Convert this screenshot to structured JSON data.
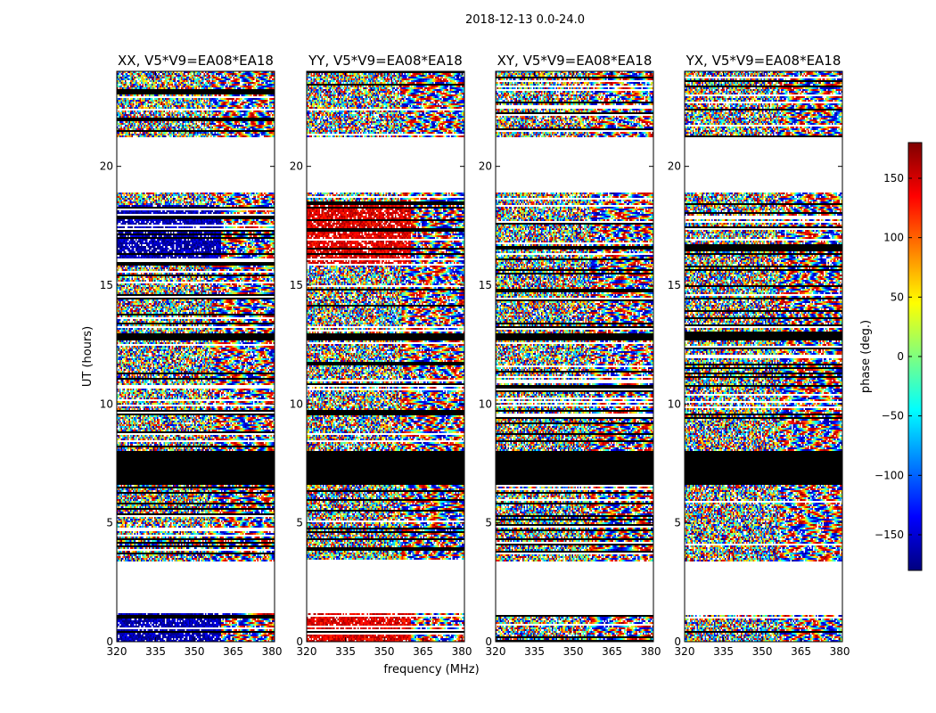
{
  "figure": {
    "suptitle": "2018-12-13 0.0-24.0"
  },
  "chart_data": [
    {
      "type": "heatmap",
      "title": "XX, V5*V9=EA08*EA18",
      "xlabel": "",
      "ylabel": "UT (hours)",
      "xlim": [
        320,
        381
      ],
      "ylim": [
        0,
        24
      ],
      "xticks": [
        "320",
        "335",
        "350",
        "365",
        "380"
      ],
      "yticks": [
        "0",
        "5",
        "10",
        "15",
        "20"
      ]
    },
    {
      "type": "heatmap",
      "title": "YY, V5*V9=EA08*EA18",
      "xlabel": "frequency (MHz)",
      "ylabel": "",
      "xlim": [
        320,
        381
      ],
      "ylim": [
        0,
        24
      ],
      "xticks": [
        "320",
        "335",
        "350",
        "365",
        "380"
      ],
      "yticks": [
        "0",
        "5",
        "10",
        "15",
        "20"
      ]
    },
    {
      "type": "heatmap",
      "title": "XY, V5*V9=EA08*EA18",
      "xlabel": "",
      "ylabel": "",
      "xlim": [
        320,
        381
      ],
      "ylim": [
        0,
        24
      ],
      "xticks": [
        "320",
        "335",
        "350",
        "365",
        "380"
      ],
      "yticks": [
        "0",
        "5",
        "10",
        "15",
        "20"
      ]
    },
    {
      "type": "heatmap",
      "title": "YX, V5*V9=EA08*EA18",
      "xlabel": "",
      "ylabel": "",
      "xlim": [
        320,
        381
      ],
      "ylim": [
        0,
        24
      ],
      "xticks": [
        "320",
        "335",
        "350",
        "365",
        "380"
      ],
      "yticks": [
        "0",
        "5",
        "10",
        "15",
        "20"
      ]
    }
  ],
  "colorbar": {
    "label": "phase (deg.)",
    "range": [
      -180,
      180
    ],
    "ticks": [
      "150",
      "100",
      "50",
      "0",
      "−50",
      "−100",
      "−150"
    ],
    "tick_values": [
      150,
      100,
      50,
      0,
      -50,
      -100,
      -150
    ],
    "colors": [
      "#00007f",
      "#0000ff",
      "#007fff",
      "#00ffff",
      "#7fff7f",
      "#ffff00",
      "#ff7f00",
      "#ff0000",
      "#7f0000"
    ]
  },
  "data_regions": {
    "flagged_black_hours": [
      [
        6.6,
        8.0
      ],
      [
        12.7,
        13.0
      ]
    ],
    "blank_hours": [
      [
        1.2,
        3.4
      ],
      [
        18.9,
        21.2
      ]
    ],
    "rfi_rows_hours": [
      [
        0.0,
        1.2
      ],
      [
        15.8,
        18.4
      ],
      [
        21.2,
        24.0
      ]
    ]
  }
}
